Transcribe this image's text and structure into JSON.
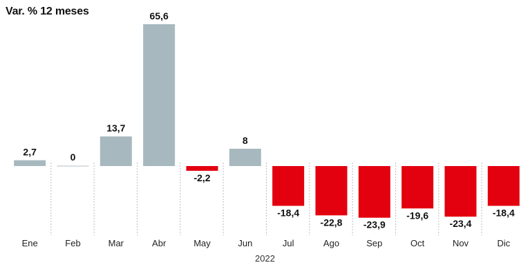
{
  "chart_data": {
    "type": "bar",
    "title": "Var. % 12 meses",
    "xlabel": "2022",
    "ylabel": "",
    "categories": [
      "Ene",
      "Feb",
      "Mar",
      "Abr",
      "May",
      "Jun",
      "Jul",
      "Ago",
      "Sep",
      "Oct",
      "Nov",
      "Dic"
    ],
    "values": [
      2.7,
      0,
      13.7,
      65.6,
      -2.2,
      8,
      -18.4,
      -22.8,
      -23.9,
      -19.6,
      -23.4,
      -18.4
    ],
    "value_labels": [
      "2,7",
      "0",
      "13,7",
      "65,6",
      "-2,2",
      "8",
      "-18,4",
      "-22,8",
      "-23,9",
      "-19,6",
      "-23,4",
      "-18,4"
    ],
    "ylim": [
      -26,
      66
    ],
    "grid": false,
    "legend": "none",
    "colors": {
      "positive": "#a7b9bf",
      "negative": "#e3000f"
    }
  }
}
